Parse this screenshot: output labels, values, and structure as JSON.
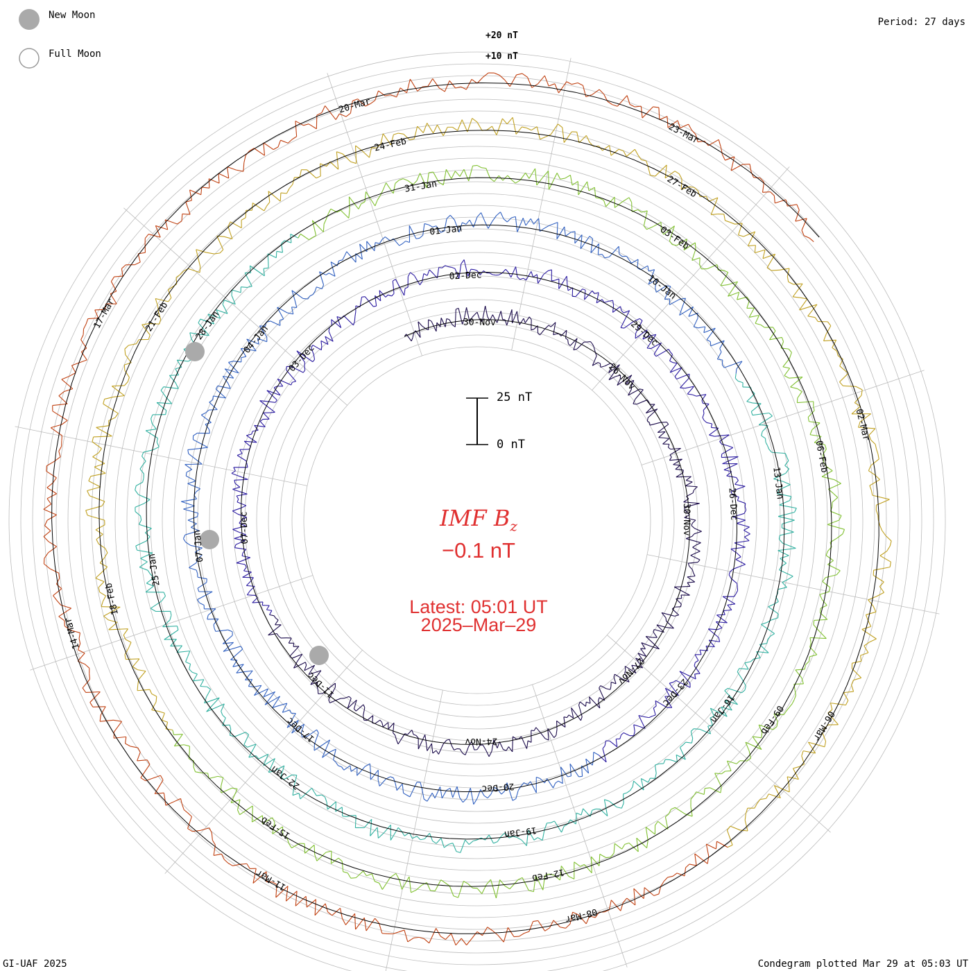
{
  "legend": {
    "new_moon": "New Moon",
    "full_moon": "Full Moon"
  },
  "period": "Period: 27 days",
  "footer": {
    "left": "GI-UAF 2025",
    "right": "Condegram plotted Mar 29 at 05:03 UT"
  },
  "scale": {
    "top": "25 nT",
    "bottom": "0 nT",
    "outer_top": "+20 nT",
    "outer_second": "+10 nT"
  },
  "center": {
    "title_main": "IMF B",
    "title_sub": "z",
    "value": "−0.1 nT",
    "latest": "Latest: 05:01 UT",
    "date": "2025–Mar–29"
  },
  "colors": {
    "ring_nov": "#1a0a4a",
    "ring_dec": "#2a1aa0",
    "ring_jan": "#3060c0",
    "ring_jan2": "#30b0a0",
    "ring_feb": "#80c030",
    "ring_feb2": "#c0a020",
    "ring_mar": "#c04010",
    "new_moon": "#aaaaaa",
    "label_red": "#e03030"
  },
  "chart_data": {
    "type": "line",
    "title": "IMF Bz",
    "layout": "condegram spiral, period 27 days",
    "latest_value_nT": -0.1,
    "latest_time": "05:01 UT",
    "latest_date": "2025-Mar-29",
    "date_labels": [
      "30-Nov",
      "26-Nov",
      "30-Nov",
      "27-Nov",
      "24-Nov",
      "11-Dec",
      "07-Dec",
      "03-Dec",
      "02-Dec",
      "29-Dec",
      "26-Dec",
      "23-Dec",
      "20-Dec",
      "17-Dec",
      "07-Jan",
      "04-Jan",
      "01-Jan",
      "10-Jan",
      "13-Jan",
      "16-Jan",
      "19-Jan",
      "22-Jan",
      "25-Jan",
      "28-Jan",
      "31-Jan",
      "03-Feb",
      "06-Feb",
      "09-Feb",
      "12-Feb",
      "15-Feb",
      "18-Feb",
      "21-Feb",
      "24-Feb",
      "27-Feb",
      "02-Mar",
      "06-Mar",
      "08-Mar",
      "11-Mar",
      "14-Mar",
      "17-Mar",
      "20-Mar",
      "23-Mar"
    ]
  }
}
